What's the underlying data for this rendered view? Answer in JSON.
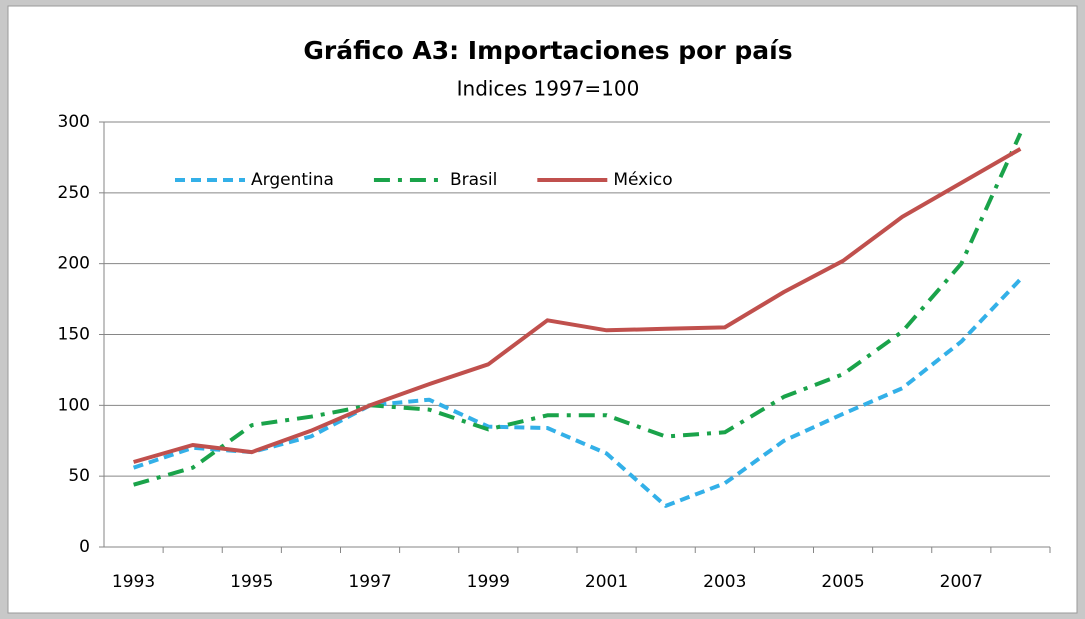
{
  "chart_data": {
    "type": "line",
    "title": "Gráfico A3: Importaciones por país",
    "subtitle": "Indices 1997=100",
    "categories": [
      "1993",
      null,
      "1995",
      null,
      "1997",
      null,
      "1999",
      null,
      "2001",
      null,
      "2003",
      null,
      "2005",
      null,
      "2007",
      null
    ],
    "series": [
      {
        "name": "Argentina",
        "color": "#33b0e8",
        "dash": "dashed",
        "values": [
          56,
          70,
          67,
          78,
          100,
          104,
          85,
          84,
          66,
          29,
          45,
          75,
          94,
          112,
          145,
          189
        ]
      },
      {
        "name": "Brasil",
        "color": "#1aa34a",
        "dash": "dash-dot",
        "values": [
          44,
          56,
          86,
          92,
          100,
          97,
          83,
          93,
          93,
          78,
          81,
          106,
          122,
          152,
          200,
          292
        ]
      },
      {
        "name": "México",
        "color": "#c0504d",
        "dash": "solid",
        "values": [
          60,
          72,
          67,
          82,
          100,
          115,
          129,
          160,
          153,
          154,
          155,
          180,
          202,
          233,
          257,
          281
        ]
      }
    ],
    "ylim": [
      0,
      300
    ],
    "yticks": [
      0,
      50,
      100,
      150,
      200,
      250,
      300
    ],
    "grid": true,
    "legend": "top-left"
  }
}
